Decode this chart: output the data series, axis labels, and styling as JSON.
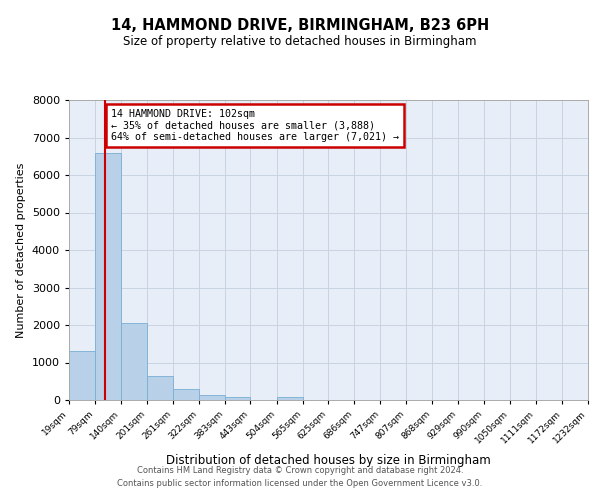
{
  "title": "14, HAMMOND DRIVE, BIRMINGHAM, B23 6PH",
  "subtitle": "Size of property relative to detached houses in Birmingham",
  "xlabel": "Distribution of detached houses by size in Birmingham",
  "ylabel": "Number of detached properties",
  "bin_edges": [
    19,
    79,
    140,
    201,
    261,
    322,
    383,
    443,
    504,
    565,
    625,
    686,
    747,
    807,
    868,
    929,
    990,
    1050,
    1111,
    1172,
    1232
  ],
  "bar_heights": [
    1310,
    6600,
    2060,
    640,
    295,
    140,
    90,
    0,
    85,
    0,
    0,
    0,
    0,
    0,
    0,
    0,
    0,
    0,
    0,
    0
  ],
  "bar_color": "#b8d0e8",
  "bar_edge_color": "#7aaed4",
  "property_size": 102,
  "annotation_title": "14 HAMMOND DRIVE: 102sqm",
  "annotation_line1": "← 35% of detached houses are smaller (3,888)",
  "annotation_line2": "64% of semi-detached houses are larger (7,021) →",
  "annotation_box_color": "#ffffff",
  "annotation_box_edge_color": "#cc0000",
  "red_line_color": "#cc0000",
  "ylim": [
    0,
    8000
  ],
  "yticks": [
    0,
    1000,
    2000,
    3000,
    4000,
    5000,
    6000,
    7000,
    8000
  ],
  "grid_color": "#c8d4e4",
  "background_color": "#e8eef8",
  "footer_line1": "Contains HM Land Registry data © Crown copyright and database right 2024.",
  "footer_line2": "Contains public sector information licensed under the Open Government Licence v3.0.",
  "tick_labels": [
    "19sqm",
    "79sqm",
    "140sqm",
    "201sqm",
    "261sqm",
    "322sqm",
    "383sqm",
    "443sqm",
    "504sqm",
    "565sqm",
    "625sqm",
    "686sqm",
    "747sqm",
    "807sqm",
    "868sqm",
    "929sqm",
    "990sqm",
    "1050sqm",
    "1111sqm",
    "1172sqm",
    "1232sqm"
  ]
}
